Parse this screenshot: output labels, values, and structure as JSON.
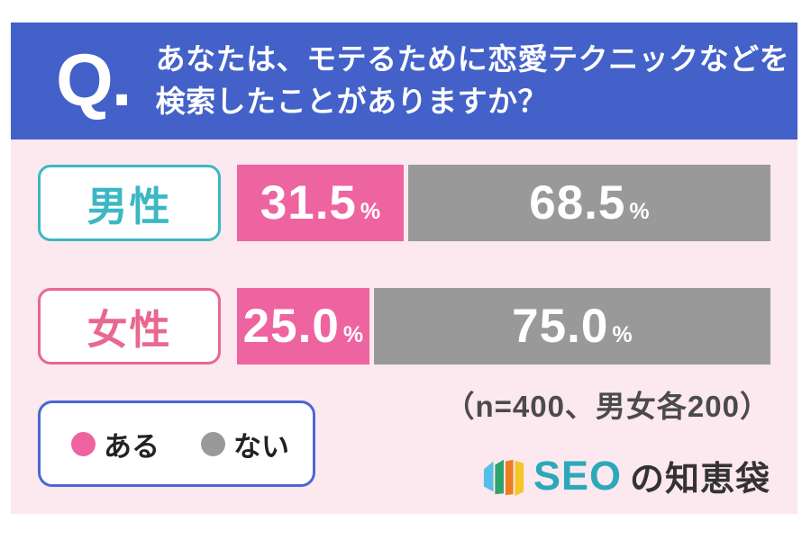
{
  "header": {
    "q_label": "Q.",
    "question_line1": "あなたは、モテるために恋愛テクニックなどを",
    "question_line2": "検索したことがありますか？"
  },
  "chart_data": {
    "type": "bar",
    "orientation": "horizontal",
    "stacked": true,
    "title": "あなたは、モテるために恋愛テクニックなどを検索したことがありますか？",
    "categories": [
      "男性",
      "女性"
    ],
    "series": [
      {
        "name": "ある",
        "color": "#ee64a0",
        "values": [
          31.5,
          25.0
        ]
      },
      {
        "name": "ない",
        "color": "#999999",
        "values": [
          68.5,
          75.0
        ]
      }
    ],
    "unit": "%",
    "xlim": [
      0,
      100
    ],
    "grid": false,
    "legend_position": "bottom-left",
    "note": "（n=400、男女各200）"
  },
  "rows": [
    {
      "label": "男性",
      "yes_display": "31.5",
      "no_display": "68.5",
      "unit": "%"
    },
    {
      "label": "女性",
      "yes_display": "25.0",
      "no_display": "75.0",
      "unit": "%"
    }
  ],
  "legend": {
    "items": [
      {
        "label": "ある",
        "color": "#ee64a0"
      },
      {
        "label": "ない",
        "color": "#999999"
      }
    ]
  },
  "footer": {
    "note": "（n=400、男女各200）",
    "logo_text_primary": "SEO",
    "logo_text_secondary": "の知恵袋"
  },
  "colors": {
    "header_bg": "#4361c9",
    "body_bg": "#fce8ef",
    "bar_yes": "#ee64a0",
    "bar_no": "#999999",
    "male_accent": "#3cb7c4",
    "female_accent": "#e8688f",
    "legend_border": "#4a67d5",
    "note_text": "#4b4b4b",
    "logo_primary": "#2ba9ba",
    "logo_secondary": "#333333",
    "logo_icon": [
      "#55bee6",
      "#2fa36c",
      "#ec7d23",
      "#f6c624"
    ]
  }
}
